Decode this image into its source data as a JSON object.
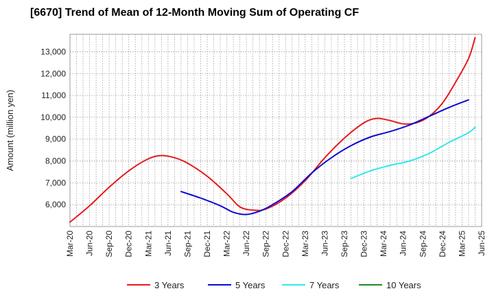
{
  "chart_data": {
    "type": "line",
    "title": "[6670]  Trend of Mean of 12-Month Moving Sum of Operating CF",
    "xlabel": "",
    "ylabel": "Amount (million yen)",
    "ylim": [
      5000,
      13800
    ],
    "yticks": [
      6000,
      7000,
      8000,
      9000,
      10000,
      11000,
      12000,
      13000
    ],
    "ytick_labels": [
      "6,000",
      "7,000",
      "8,000",
      "9,000",
      "10,000",
      "11,000",
      "12,000",
      "13,000"
    ],
    "x_start": "Mar-20",
    "x_months_total": 63,
    "xticks": [
      "Mar-20",
      "Jun-20",
      "Sep-20",
      "Dec-20",
      "Mar-21",
      "Jun-21",
      "Sep-21",
      "Dec-21",
      "Mar-22",
      "Jun-22",
      "Sep-22",
      "Dec-22",
      "Mar-23",
      "Jun-23",
      "Sep-23",
      "Dec-23",
      "Mar-24",
      "Jun-24",
      "Sep-24",
      "Dec-24",
      "Mar-25",
      "Jun-25"
    ],
    "grid": true,
    "legend_position": "bottom",
    "series": [
      {
        "name": "3 Years",
        "color": "#e41a1c",
        "points": [
          [
            0,
            5200
          ],
          [
            3,
            5950
          ],
          [
            6,
            6800
          ],
          [
            9,
            7550
          ],
          [
            12,
            8100
          ],
          [
            14,
            8250
          ],
          [
            16,
            8150
          ],
          [
            18,
            7900
          ],
          [
            21,
            7300
          ],
          [
            24,
            6500
          ],
          [
            26,
            5900
          ],
          [
            28,
            5750
          ],
          [
            30,
            5800
          ],
          [
            33,
            6300
          ],
          [
            36,
            7100
          ],
          [
            39,
            8150
          ],
          [
            42,
            9050
          ],
          [
            45,
            9750
          ],
          [
            47,
            9950
          ],
          [
            49,
            9850
          ],
          [
            51,
            9700
          ],
          [
            53,
            9750
          ],
          [
            55,
            10050
          ],
          [
            57,
            10650
          ],
          [
            59,
            11600
          ],
          [
            61,
            12700
          ],
          [
            62,
            13650
          ]
        ]
      },
      {
        "name": "5 Years",
        "color": "#0a0ad2",
        "points": [
          [
            17,
            6600
          ],
          [
            20,
            6300
          ],
          [
            23,
            5950
          ],
          [
            25,
            5650
          ],
          [
            27,
            5550
          ],
          [
            29,
            5700
          ],
          [
            31,
            6000
          ],
          [
            34,
            6600
          ],
          [
            37,
            7450
          ],
          [
            40,
            8150
          ],
          [
            43,
            8700
          ],
          [
            46,
            9100
          ],
          [
            49,
            9350
          ],
          [
            52,
            9650
          ],
          [
            55,
            10050
          ],
          [
            58,
            10450
          ],
          [
            61,
            10800
          ]
        ]
      },
      {
        "name": "7 Years",
        "color": "#33e8ea",
        "points": [
          [
            43,
            7200
          ],
          [
            46,
            7550
          ],
          [
            49,
            7800
          ],
          [
            52,
            8000
          ],
          [
            55,
            8350
          ],
          [
            58,
            8850
          ],
          [
            61,
            9300
          ],
          [
            62,
            9550
          ]
        ]
      },
      {
        "name": "10 Years",
        "color": "#1f8a1f",
        "points": []
      }
    ]
  }
}
